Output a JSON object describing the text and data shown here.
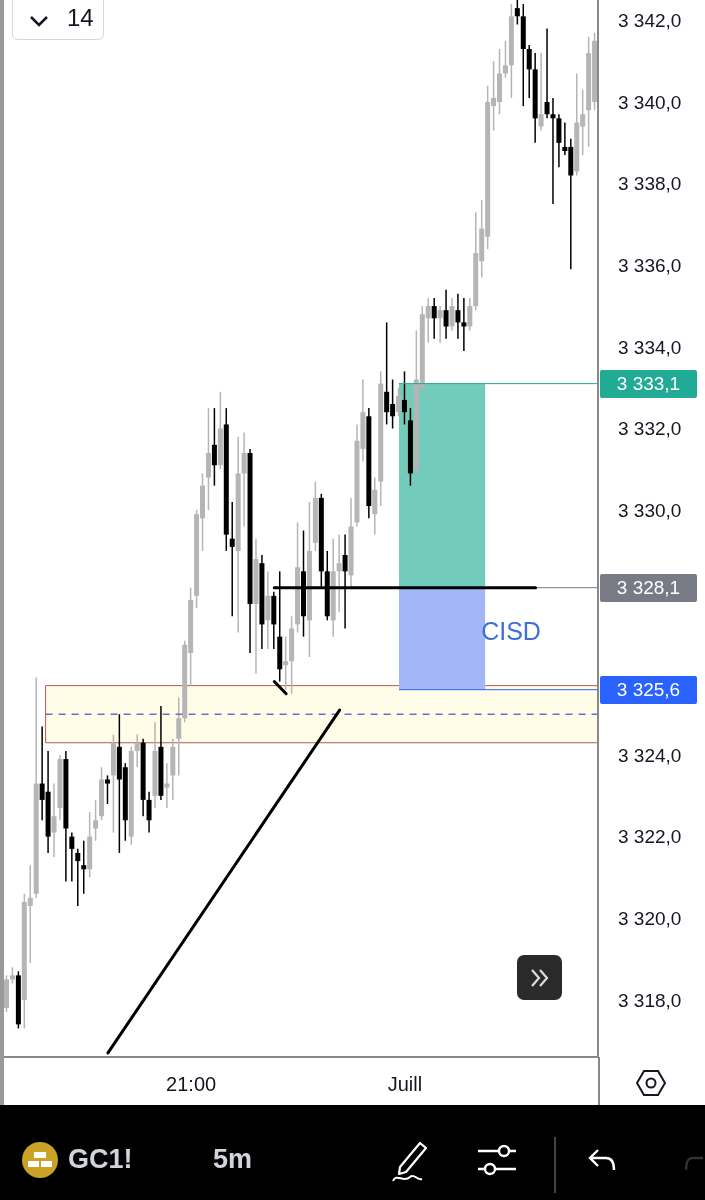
{
  "chart_data": {
    "type": "candlestick",
    "categories": [
      null,
      null,
      null,
      null,
      null,
      null,
      null,
      null,
      null,
      null,
      null,
      null,
      null,
      null,
      null,
      null,
      null,
      null,
      null,
      null,
      null,
      null,
      null,
      null,
      null,
      null,
      null,
      null,
      null,
      null,
      null,
      "21:00",
      null,
      null,
      null,
      null,
      null,
      null,
      null,
      null,
      null,
      null,
      null,
      null,
      null,
      null,
      null,
      null,
      null,
      null,
      null,
      null,
      null,
      null,
      null,
      null,
      null,
      null,
      null,
      null,
      null,
      null,
      null,
      null,
      null,
      null,
      null,
      "Juill",
      null,
      null,
      null,
      null,
      null,
      null,
      null,
      null,
      null,
      null,
      null,
      null,
      null,
      null,
      null,
      null,
      null,
      null,
      null,
      null,
      null,
      null,
      null,
      null,
      null,
      null,
      null,
      null,
      null,
      null,
      null,
      null
    ],
    "ohlc": [
      [
        3317.8,
        3318.6,
        3317.7,
        3318.5
      ],
      [
        3318.5,
        3318.8,
        3318.4,
        3318.6
      ],
      [
        3318.6,
        3318.7,
        3317.3,
        3317.4
      ],
      [
        3318.0,
        3320.6,
        3317.3,
        3320.4
      ],
      [
        3320.3,
        3321.3,
        3318.9,
        3320.5
      ],
      [
        3320.6,
        3325.9,
        3320.5,
        3323.3
      ],
      [
        3323.3,
        3324.7,
        3322.4,
        3322.9
      ],
      [
        3323.1,
        3324.1,
        3321.6,
        3322.0
      ],
      [
        3322.1,
        3323.3,
        3321.5,
        3322.5
      ],
      [
        3322.7,
        3324.0,
        3322.4,
        3323.9
      ],
      [
        3323.9,
        3324.1,
        3320.9,
        3322.2
      ],
      [
        3322.0,
        3322.1,
        3320.9,
        3321.7
      ],
      [
        3321.6,
        3321.7,
        3320.3,
        3321.4
      ],
      [
        3321.3,
        3321.9,
        3320.6,
        3321.2
      ],
      [
        3321.2,
        3322.6,
        3321.0,
        3322.0
      ],
      [
        3322.2,
        3322.9,
        3321.9,
        3322.4
      ],
      [
        3322.5,
        3323.7,
        3322.4,
        3323.4
      ],
      [
        3323.4,
        3323.5,
        3322.8,
        3323.3
      ],
      [
        3323.5,
        3324.5,
        3322.1,
        3324.3
      ],
      [
        3324.2,
        3325.0,
        3321.6,
        3323.4
      ],
      [
        3323.7,
        3323.8,
        3321.9,
        3322.4
      ],
      [
        3322.0,
        3324.2,
        3321.8,
        3324.1
      ],
      [
        3324.1,
        3324.5,
        3323.7,
        3324.3
      ],
      [
        3324.3,
        3324.4,
        3322.5,
        3322.9
      ],
      [
        3322.9,
        3323.1,
        3322.1,
        3322.4
      ],
      [
        3323.0,
        3324.8,
        3322.7,
        3324.1
      ],
      [
        3324.2,
        3325.2,
        3322.9,
        3323.0
      ],
      [
        3323.2,
        3323.8,
        3322.7,
        3323.3
      ],
      [
        3323.5,
        3324.4,
        3322.9,
        3324.2
      ],
      [
        3324.4,
        3325.4,
        3323.5,
        3324.9
      ],
      [
        3324.9,
        3326.8,
        3324.8,
        3326.7
      ],
      [
        3326.5,
        3328.1,
        3325.7,
        3327.8
      ],
      [
        3327.9,
        3330.0,
        3327.6,
        3329.9
      ],
      [
        3329.8,
        3330.9,
        3329.0,
        3330.6
      ],
      [
        3330.8,
        3332.5,
        3330.0,
        3331.4
      ],
      [
        3331.6,
        3332.5,
        3330.6,
        3331.1
      ],
      [
        3331.1,
        3332.9,
        3331.0,
        3332.0
      ],
      [
        3332.1,
        3332.5,
        3329.0,
        3329.4
      ],
      [
        3329.3,
        3330.2,
        3327.4,
        3329.1
      ],
      [
        3329.0,
        3331.8,
        3327.0,
        3330.9
      ],
      [
        3330.9,
        3331.9,
        3329.6,
        3331.4
      ],
      [
        3331.4,
        3331.5,
        3326.5,
        3327.7
      ],
      [
        3327.7,
        3329.3,
        3326.0,
        3328.8
      ],
      [
        3328.7,
        3328.9,
        3326.6,
        3327.2
      ],
      [
        3327.3,
        3328.5,
        3326.6,
        3327.9
      ],
      [
        3327.9,
        3328.0,
        3326.6,
        3327.2
      ],
      [
        3326.9,
        3328.5,
        3325.8,
        3326.1
      ],
      [
        3326.2,
        3326.9,
        3325.6,
        3326.3
      ],
      [
        3326.3,
        3327.4,
        3325.5,
        3327.1
      ],
      [
        3327.2,
        3329.7,
        3327.0,
        3328.6
      ],
      [
        3328.5,
        3329.5,
        3326.9,
        3327.4
      ],
      [
        3327.3,
        3330.2,
        3326.4,
        3329.0
      ],
      [
        3329.2,
        3330.7,
        3329.0,
        3330.3
      ],
      [
        3330.3,
        3330.4,
        3328.1,
        3328.5
      ],
      [
        3328.5,
        3329.0,
        3327.3,
        3327.4
      ],
      [
        3327.3,
        3329.3,
        3326.9,
        3328.5
      ],
      [
        3328.5,
        3329.4,
        3327.5,
        3328.7
      ],
      [
        3328.9,
        3329.4,
        3327.1,
        3328.5
      ],
      [
        3328.4,
        3330.3,
        3328.1,
        3329.6
      ],
      [
        3329.7,
        3332.1,
        3329.6,
        3331.7
      ],
      [
        3331.5,
        3333.2,
        3331.2,
        3332.4
      ],
      [
        3332.3,
        3332.5,
        3329.8,
        3330.1
      ],
      [
        3329.9,
        3330.8,
        3329.4,
        3330.5
      ],
      [
        3330.7,
        3333.4,
        3330.1,
        3333.1
      ],
      [
        3332.9,
        3334.6,
        3332.1,
        3332.4
      ],
      [
        3332.6,
        3333.2,
        3332.0,
        3332.3
      ],
      [
        3332.4,
        3333.0,
        3332.3,
        3332.8
      ],
      [
        3332.7,
        3333.4,
        3332.1,
        3332.4
      ],
      [
        3332.2,
        3332.5,
        3330.6,
        3330.9
      ],
      [
        3331.0,
        3334.4,
        3330.9,
        3333.2
      ],
      [
        3333.0,
        3335.0,
        3332.9,
        3334.8
      ],
      [
        3334.7,
        3335.2,
        3334.1,
        3335.0
      ],
      [
        3335.0,
        3335.2,
        3334.2,
        3334.7
      ],
      [
        3334.7,
        3335.0,
        3334.1,
        3334.9
      ],
      [
        3334.9,
        3335.4,
        3334.2,
        3334.5
      ],
      [
        3334.5,
        3335.2,
        3334.4,
        3335.0
      ],
      [
        3334.9,
        3335.3,
        3334.2,
        3334.6
      ],
      [
        3334.6,
        3335.2,
        3333.9,
        3334.5
      ],
      [
        3334.5,
        3335.2,
        3334.4,
        3335.0
      ],
      [
        3335.0,
        3337.3,
        3334.9,
        3336.3
      ],
      [
        3336.1,
        3337.6,
        3335.7,
        3336.9
      ],
      [
        3336.7,
        3340.4,
        3336.4,
        3340.0
      ],
      [
        3339.9,
        3341.0,
        3339.3,
        3340.1
      ],
      [
        3340.0,
        3341.3,
        3339.7,
        3340.7
      ],
      [
        3340.7,
        3341.5,
        3340.6,
        3340.9
      ],
      [
        3340.9,
        3342.4,
        3340.1,
        3342.1
      ],
      [
        3342.3,
        3342.5,
        3341.9,
        3342.1
      ],
      [
        3342.1,
        3342.4,
        3339.9,
        3341.3
      ],
      [
        3341.3,
        3341.4,
        3340.1,
        3340.8
      ],
      [
        3340.8,
        3341.2,
        3339.0,
        3339.6
      ],
      [
        3339.4,
        3341.2,
        3339.3,
        3339.7
      ],
      [
        3340.0,
        3341.8,
        3339.6,
        3339.7
      ],
      [
        3339.7,
        3340.1,
        3337.5,
        3339.6
      ],
      [
        3339.6,
        3339.7,
        3338.4,
        3339.0
      ],
      [
        3338.9,
        3339.5,
        3338.7,
        3338.8
      ],
      [
        3338.9,
        3339.1,
        3335.9,
        3338.2
      ],
      [
        3338.3,
        3340.7,
        3338.2,
        3339.5
      ],
      [
        3339.4,
        3340.3,
        3338.7,
        3339.7
      ],
      [
        3339.8,
        3341.6,
        3338.9,
        3341.2
      ],
      [
        3340.0,
        3341.7,
        3339.8,
        3341.5
      ]
    ],
    "colors": [
      "#b5b5b5",
      "#b5b5b5",
      "#000000",
      "#b5b5b5",
      "#b5b5b5",
      "#b5b5b5",
      "#000000",
      "#000000",
      "#b5b5b5",
      "#b5b5b5",
      "#000000",
      "#000000",
      "#000000",
      "#000000",
      "#b5b5b5",
      "#b5b5b5",
      "#b5b5b5",
      "#000000",
      "#b5b5b5",
      "#000000",
      "#000000",
      "#b5b5b5",
      "#b5b5b5",
      "#000000",
      "#000000",
      "#b5b5b5",
      "#000000",
      "#b5b5b5",
      "#b5b5b5",
      "#b5b5b5",
      "#b5b5b5",
      "#b5b5b5",
      "#b5b5b5",
      "#b5b5b5",
      "#b5b5b5",
      "#000000",
      "#b5b5b5",
      "#000000",
      "#000000",
      "#b5b5b5",
      "#b5b5b5",
      "#000000",
      "#b5b5b5",
      "#000000",
      "#b5b5b5",
      "#000000",
      "#000000",
      "#b5b5b5",
      "#b5b5b5",
      "#b5b5b5",
      "#000000",
      "#b5b5b5",
      "#b5b5b5",
      "#000000",
      "#000000",
      "#b5b5b5",
      "#b5b5b5",
      "#000000",
      "#b5b5b5",
      "#b5b5b5",
      "#b5b5b5",
      "#000000",
      "#b5b5b5",
      "#b5b5b5",
      "#000000",
      "#000000",
      "#b5b5b5",
      "#000000",
      "#000000",
      "#b5b5b5",
      "#b5b5b5",
      "#b5b5b5",
      "#000000",
      "#b5b5b5",
      "#000000",
      "#b5b5b5",
      "#000000",
      "#000000",
      "#b5b5b5",
      "#b5b5b5",
      "#b5b5b5",
      "#b5b5b5",
      "#b5b5b5",
      "#b5b5b5",
      "#b5b5b5",
      "#b5b5b5",
      "#000000",
      "#000000",
      "#000000",
      "#000000",
      "#b5b5b5",
      "#000000",
      "#000000",
      "#000000",
      "#000000",
      "#000000",
      "#b5b5b5",
      "#b5b5b5",
      "#b5b5b5",
      "#b5b5b5"
    ],
    "series": [
      {
        "type": "line",
        "color": "#000000",
        "values": [
          null,
          null,
          null,
          null,
          null,
          null,
          null,
          null,
          null,
          null,
          null,
          null,
          null,
          null,
          null,
          null,
          null,
          3316.7,
          null,
          null,
          null,
          null,
          null,
          null,
          null,
          null,
          null,
          null,
          null,
          null,
          null,
          null,
          null,
          null,
          null,
          null,
          null,
          null,
          null,
          null,
          null,
          null,
          null,
          null,
          null,
          null,
          null,
          null,
          null,
          null,
          null,
          null,
          null,
          null,
          null,
          null,
          3325.1,
          null,
          null,
          null,
          null,
          null,
          null,
          null,
          null,
          null,
          null,
          null,
          null,
          null,
          null,
          null,
          null,
          null,
          null,
          null,
          null,
          null,
          null,
          null,
          null,
          null,
          null,
          null,
          null,
          null,
          null,
          null,
          null,
          null,
          null,
          null,
          null,
          null,
          null,
          null,
          null,
          null,
          null,
          null
        ]
      },
      {
        "type": "line",
        "color": "#000000",
        "values": [
          null,
          null,
          null,
          null,
          null,
          null,
          null,
          null,
          null,
          null,
          null,
          null,
          null,
          null,
          null,
          null,
          null,
          null,
          null,
          null,
          null,
          null,
          null,
          null,
          null,
          null,
          null,
          null,
          null,
          null,
          null,
          null,
          null,
          null,
          null,
          null,
          null,
          null,
          null,
          null,
          null,
          null,
          null,
          null,
          null,
          3325.8,
          null,
          3325.5,
          null,
          null,
          null,
          null,
          null,
          null,
          null,
          null,
          null,
          null,
          null,
          null,
          null,
          null,
          null,
          null,
          null,
          null,
          null,
          null,
          null,
          null,
          null,
          null,
          null,
          null,
          null,
          null,
          null,
          null,
          null,
          null,
          null,
          null,
          null,
          null,
          null,
          null,
          null,
          null,
          null,
          null,
          null,
          null,
          null,
          null,
          null,
          null,
          null,
          null,
          null,
          null
        ]
      },
      {
        "type": "line",
        "color": "#000000",
        "values": [
          null,
          null,
          null,
          null,
          null,
          null,
          null,
          null,
          null,
          null,
          null,
          null,
          null,
          null,
          null,
          null,
          null,
          null,
          null,
          null,
          null,
          null,
          null,
          null,
          null,
          null,
          null,
          null,
          null,
          null,
          null,
          null,
          null,
          null,
          null,
          null,
          null,
          null,
          null,
          null,
          null,
          null,
          null,
          null,
          null,
          3328.1,
          null,
          null,
          null,
          null,
          null,
          null,
          null,
          null,
          null,
          null,
          null,
          null,
          null,
          null,
          null,
          null,
          null,
          null,
          null,
          null,
          null,
          null,
          null,
          null,
          null,
          null,
          null,
          null,
          null,
          null,
          null,
          null,
          null,
          null,
          null,
          null,
          null,
          null,
          null,
          null,
          null,
          null,
          null,
          3328.1,
          null,
          null,
          null,
          null,
          null,
          null,
          null,
          null,
          null,
          null
        ]
      }
    ],
    "ylim": [
      3316.6,
      3342.5
    ],
    "yticks": [
      {
        "value": 3318,
        "label": "3 318,0"
      },
      {
        "value": 3320,
        "label": "3 320,0"
      },
      {
        "value": 3322,
        "label": "3 322,0"
      },
      {
        "value": 3324,
        "label": "3 324,0"
      },
      {
        "value": 3330,
        "label": "3 330,0"
      },
      {
        "value": 3332,
        "label": "3 332,0"
      },
      {
        "value": 3334,
        "label": "3 334,0"
      },
      {
        "value": 3336,
        "label": "3 336,0"
      },
      {
        "value": 3338,
        "label": "3 338,0"
      },
      {
        "value": 3340,
        "label": "3 340,0"
      },
      {
        "value": 3342,
        "label": "3 342,0"
      }
    ],
    "bands": [
      {
        "axis": "y",
        "from": 3324.3,
        "to": 3325.7,
        "color": "#fffde7"
      },
      {
        "axis": "y",
        "from": 3328.1,
        "to": 3333.1,
        "color": "#72cbbb"
      },
      {
        "axis": "y",
        "from": 3325.6,
        "to": 3328.1,
        "color": "#a3b6f7"
      }
    ],
    "ref_lines": [
      {
        "axis": "y",
        "value": 3325.0,
        "color": "#6b6fc9",
        "line_style": "dashed"
      },
      {
        "axis": "y",
        "value": 3333.1,
        "label": "3 333,1",
        "color": "#22ab94"
      },
      {
        "axis": "y",
        "value": 3328.1,
        "label": "3 328,1",
        "color": "#787b86"
      },
      {
        "axis": "y",
        "value": 3325.6,
        "label": "3 325,6",
        "color": "#2962ff"
      }
    ],
    "annotations": [
      "14",
      "CISD",
      "GC1!",
      "5m"
    ]
  }
}
